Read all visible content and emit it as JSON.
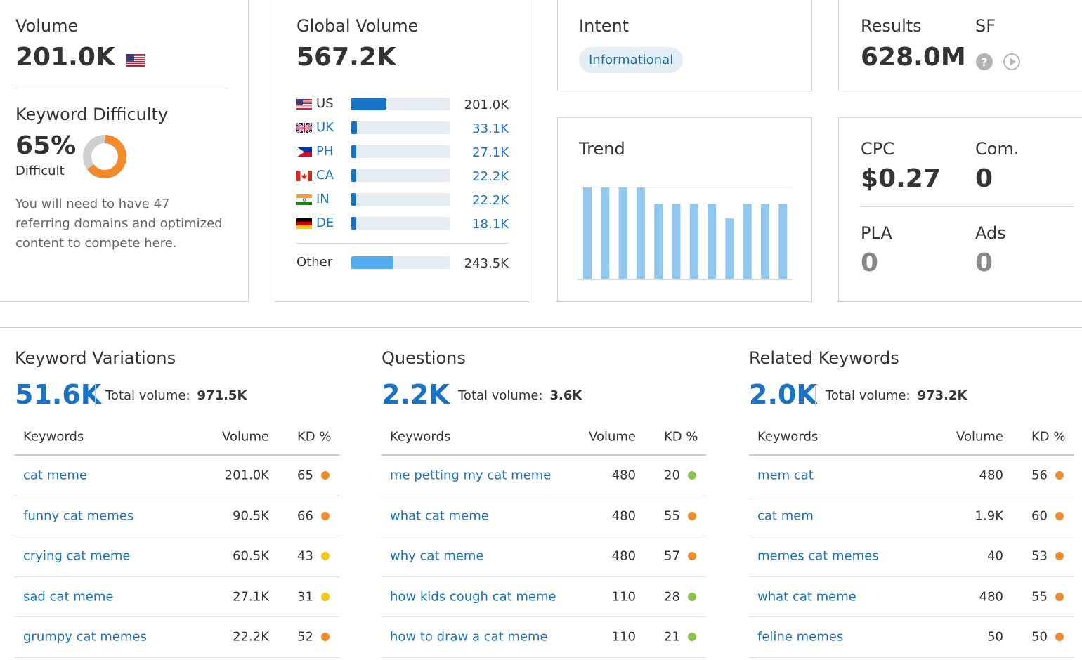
{
  "volume": {
    "label": "Volume",
    "value": "201.0K",
    "flag_icon": "us-flag-icon",
    "kd_label": "Keyword Difficulty",
    "kd_value": "65%",
    "kd_level": "Difficult",
    "kd_percent": 65,
    "kd_color": "#f38b2a",
    "kd_text": "You will need to have 47 referring domains and optimized content to compete here."
  },
  "global": {
    "label": "Global Volume",
    "value": "567.2K",
    "countries": [
      {
        "code": "US",
        "value": "201.0K",
        "fraction": 0.35
      },
      {
        "code": "UK",
        "value": "33.1K",
        "fraction": 0.06
      },
      {
        "code": "PH",
        "value": "27.1K",
        "fraction": 0.05
      },
      {
        "code": "CA",
        "value": "22.2K",
        "fraction": 0.04
      },
      {
        "code": "IN",
        "value": "22.2K",
        "fraction": 0.04
      },
      {
        "code": "DE",
        "value": "18.1K",
        "fraction": 0.03
      }
    ],
    "other_label": "Other",
    "other_value": "243.5K",
    "other_fraction": 0.43
  },
  "intent": {
    "label": "Intent",
    "badge": "Informational"
  },
  "results": {
    "label": "Results",
    "value": "628.0M",
    "sf_label": "SF"
  },
  "trend": {
    "label": "Trend",
    "values": [
      1.0,
      1.0,
      1.0,
      1.0,
      0.82,
      0.82,
      0.82,
      0.82,
      0.66,
      0.82,
      0.82,
      0.82
    ]
  },
  "cpc": {
    "cpc_label": "CPC",
    "cpc_value": "$0.27",
    "com_label": "Com.",
    "com_value": "0",
    "pla_label": "PLA",
    "pla_value": "0",
    "ads_label": "Ads",
    "ads_value": "0"
  },
  "sections": [
    {
      "title": "Keyword Variations",
      "count": "51.6K",
      "total_label": "Total volume:",
      "total_value": "971.5K",
      "headers": {
        "keywords": "Keywords",
        "volume": "Volume",
        "kd": "KD %"
      },
      "rows": [
        {
          "keyword": "cat meme",
          "volume": "201.0K",
          "kd": "65",
          "color": "#f38b2a"
        },
        {
          "keyword": "funny cat memes",
          "volume": "90.5K",
          "kd": "66",
          "color": "#f38b2a"
        },
        {
          "keyword": "crying cat meme",
          "volume": "60.5K",
          "kd": "43",
          "color": "#f5c518"
        },
        {
          "keyword": "sad cat meme",
          "volume": "27.1K",
          "kd": "31",
          "color": "#f5c518"
        },
        {
          "keyword": "grumpy cat memes",
          "volume": "22.2K",
          "kd": "52",
          "color": "#f38b2a"
        }
      ]
    },
    {
      "title": "Questions",
      "count": "2.2K",
      "total_label": "Total volume:",
      "total_value": "3.6K",
      "headers": {
        "keywords": "Keywords",
        "volume": "Volume",
        "kd": "KD %"
      },
      "rows": [
        {
          "keyword": "me petting my cat meme",
          "volume": "480",
          "kd": "20",
          "color": "#8bc34a"
        },
        {
          "keyword": "what cat meme",
          "volume": "480",
          "kd": "55",
          "color": "#f38b2a"
        },
        {
          "keyword": "why cat meme",
          "volume": "480",
          "kd": "57",
          "color": "#f38b2a"
        },
        {
          "keyword": "how kids cough cat meme",
          "volume": "110",
          "kd": "28",
          "color": "#8bc34a"
        },
        {
          "keyword": "how to draw a cat meme",
          "volume": "110",
          "kd": "21",
          "color": "#8bc34a"
        }
      ]
    },
    {
      "title": "Related Keywords",
      "count": "2.0K",
      "total_label": "Total volume:",
      "total_value": "973.2K",
      "headers": {
        "keywords": "Keywords",
        "volume": "Volume",
        "kd": "KD %"
      },
      "rows": [
        {
          "keyword": "mem cat",
          "volume": "480",
          "kd": "56",
          "color": "#f38b2a"
        },
        {
          "keyword": "cat mem",
          "volume": "1.9K",
          "kd": "60",
          "color": "#f38b2a"
        },
        {
          "keyword": "memes cat memes",
          "volume": "40",
          "kd": "53",
          "color": "#f38b2a"
        },
        {
          "keyword": "what cat meme",
          "volume": "480",
          "kd": "55",
          "color": "#f38b2a"
        },
        {
          "keyword": "feline memes",
          "volume": "50",
          "kd": "50",
          "color": "#f38b2a"
        }
      ]
    }
  ]
}
